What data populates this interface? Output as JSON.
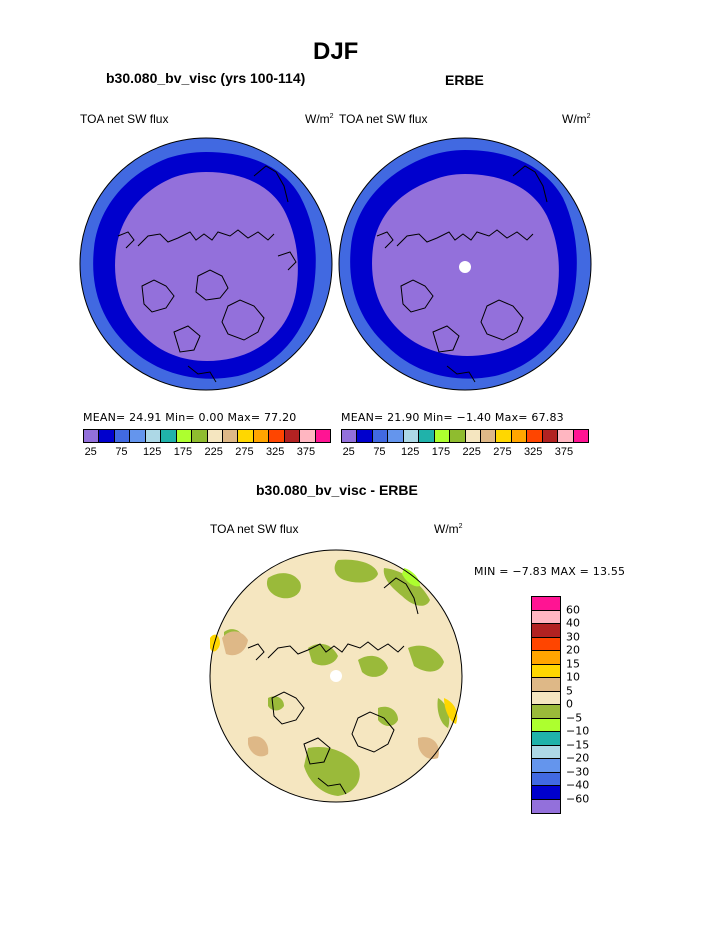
{
  "title": "DJF",
  "left_panel": {
    "case_title": "b30.080_bv_visc (yrs 100-114)",
    "variable": "TOA net SW flux",
    "units": "W/m",
    "units_sup": "2",
    "stats": "MEAN=   24.91   Min=    0.00   Max=   77.20"
  },
  "right_panel": {
    "case_title": "ERBE",
    "variable": "TOA net SW flux",
    "units": "W/m",
    "units_sup": "2",
    "stats": "MEAN=   21.90   Min=   −1.40   Max=   67.83"
  },
  "diff_panel": {
    "case_title": "b30.080_bv_visc - ERBE",
    "variable": "TOA net SW flux",
    "units": "W/m",
    "units_sup": "2",
    "stats": "MIN =   −7.83  MAX =   13.55"
  },
  "colorbar_top": {
    "colors": [
      "#9370db",
      "#0000cd",
      "#4169e1",
      "#6495ed",
      "#add8e6",
      "#20b2aa",
      "#adff2f",
      "#8fbc2f",
      "#f5e6c0",
      "#deb887",
      "#ffd700",
      "#ffa500",
      "#ff4500",
      "#b22222",
      "#ffb6c1",
      "#ff1493"
    ],
    "ticks": [
      "25",
      "75",
      "125",
      "175",
      "225",
      "275",
      "325",
      "375"
    ]
  },
  "colorbar_diff": {
    "colors_top_to_bottom": [
      "#ff1493",
      "#ffb6c1",
      "#b22222",
      "#ff4500",
      "#ffa500",
      "#ffd700",
      "#deb887",
      "#f5e6c0",
      "#9aba3a",
      "#adff2f",
      "#20b2aa",
      "#add8e6",
      "#6495ed",
      "#4169e1",
      "#0000cd",
      "#9370db"
    ],
    "ticks": [
      "60",
      "40",
      "30",
      "20",
      "15",
      "10",
      "5",
      "0",
      "−5",
      "−10",
      "−15",
      "−20",
      "−30",
      "−40",
      "−60"
    ]
  },
  "chart_data": [
    {
      "type": "heatmap",
      "title": "b30.080_bv_visc (yrs 100-114)",
      "variable": "TOA net SW flux",
      "units": "W/m2",
      "mean": 24.91,
      "min": 0.0,
      "max": 77.2,
      "levels": [
        25,
        50,
        75,
        100,
        125,
        150,
        175,
        200,
        225,
        250,
        275,
        300,
        325,
        350,
        375
      ]
    },
    {
      "type": "heatmap",
      "title": "ERBE",
      "variable": "TOA net SW flux",
      "units": "W/m2",
      "mean": 21.9,
      "min": -1.4,
      "max": 67.83,
      "levels": [
        25,
        50,
        75,
        100,
        125,
        150,
        175,
        200,
        225,
        250,
        275,
        300,
        325,
        350,
        375
      ]
    },
    {
      "type": "heatmap",
      "title": "b30.080_bv_visc - ERBE",
      "variable": "TOA net SW flux",
      "units": "W/m2",
      "min": -7.83,
      "max": 13.55,
      "levels": [
        -60,
        -40,
        -30,
        -20,
        -15,
        -10,
        -5,
        0,
        5,
        10,
        15,
        20,
        30,
        40,
        60
      ]
    }
  ]
}
